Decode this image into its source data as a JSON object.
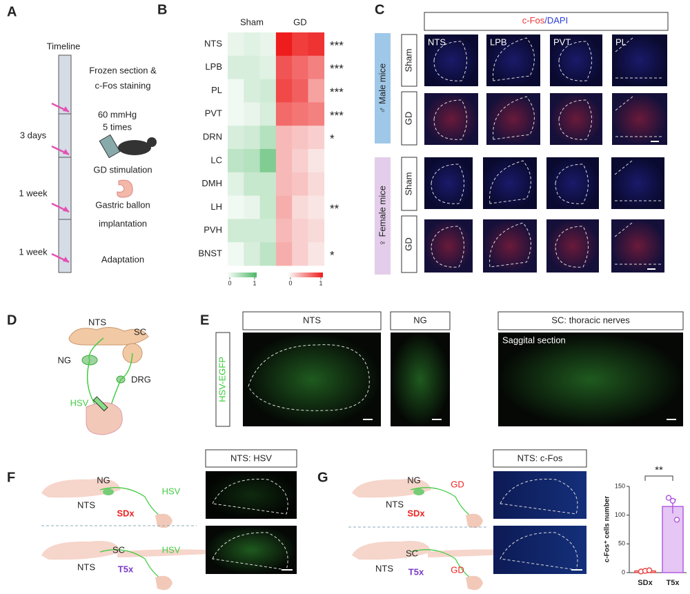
{
  "figure": {
    "panel_labels": [
      "A",
      "B",
      "C",
      "D",
      "E",
      "F",
      "G"
    ],
    "a": {
      "timeline": "Timeline",
      "durations": [
        "3 days",
        "1 week",
        "1 week"
      ],
      "steps": [
        [
          "Frozen section &",
          "c-Fos staining"
        ],
        [
          "60 mmHg",
          "5 times"
        ],
        [
          "GD stimulation"
        ],
        [
          "Gastric ballon",
          "implantation"
        ],
        [
          "Adaptation"
        ]
      ]
    },
    "c": {
      "title_parts": [
        "c-Fos",
        "/DAPI"
      ],
      "groups": [
        "♂ Male mice",
        "♀ Female mice"
      ],
      "conditions": [
        "Sham",
        "GD"
      ],
      "regions": [
        "NTS",
        "LPB",
        "PVT",
        "PL"
      ]
    },
    "d": {
      "labels": [
        "NTS",
        "SC",
        "NG",
        "DRG",
        "HSV"
      ]
    },
    "e": {
      "panels": [
        "NTS",
        "NG",
        "SC: thoracic nerves"
      ],
      "stain": "HSV-EGFP",
      "note": "Saggital section"
    },
    "f": {
      "upper": [
        "NG",
        "HSV",
        "NTS",
        "SDx"
      ],
      "lower": [
        "SC",
        "HSV",
        "NTS",
        "T5x"
      ],
      "image_title": "NTS: HSV"
    },
    "g": {
      "upper": [
        "NG",
        "GD",
        "NTS",
        "SDx"
      ],
      "lower": [
        "SC",
        "NTS",
        "T5x",
        "GD"
      ],
      "image_title": "NTS: c-Fos"
    }
  },
  "chart_data": [
    {
      "type": "heatmap",
      "categories": [
        "NTS",
        "LPB",
        "PL",
        "PVT",
        "DRN",
        "LC",
        "DMH",
        "LH",
        "PVH",
        "BNST"
      ],
      "series": [
        {
          "name": "Sham",
          "color": "#4cb865",
          "values": [
            [
              0.1,
              0.15,
              0.1
            ],
            [
              0.2,
              0.2,
              0.15
            ],
            [
              0.05,
              0.2,
              0.25
            ],
            [
              0.05,
              0.1,
              0.2
            ],
            [
              0.2,
              0.25,
              0.4
            ],
            [
              0.35,
              0.4,
              0.7
            ],
            [
              0.15,
              0.3,
              0.3
            ],
            [
              0.05,
              0.1,
              0.3
            ],
            [
              0.25,
              0.25,
              0.25
            ],
            [
              0.05,
              0.2,
              0.35
            ]
          ]
        },
        {
          "name": "GD",
          "color": "#ee1c1c",
          "values": [
            [
              1,
              0.85,
              0.9
            ],
            [
              0.75,
              0.65,
              0.55
            ],
            [
              0.8,
              0.7,
              0.4
            ],
            [
              0.65,
              0.6,
              0.55
            ],
            [
              0.3,
              0.25,
              0.2
            ],
            [
              0.3,
              0.2,
              0.1
            ],
            [
              0.3,
              0.25,
              0.15
            ],
            [
              0.35,
              0.15,
              0.1
            ],
            [
              0.3,
              0.2,
              0.15
            ],
            [
              0.35,
              0.2,
              0.1
            ]
          ]
        }
      ],
      "significance": [
        "***",
        "***",
        "***",
        "***",
        "*",
        null,
        null,
        "**",
        null,
        "*"
      ],
      "colorbar_ticks": [
        0,
        1
      ]
    },
    {
      "type": "bar",
      "categories": [
        "SDx",
        "T5x"
      ],
      "values": [
        3,
        115
      ],
      "errors": [
        1,
        12
      ],
      "points": [
        [
          2,
          3,
          4
        ],
        [
          130,
          125,
          92
        ]
      ],
      "colors": [
        "#e84a4a",
        "#b45be0"
      ],
      "ylabel": "c-Fos⁺ cells number",
      "ylim": [
        0,
        150
      ],
      "yticks": [
        0,
        50,
        100,
        150
      ],
      "significance": "**"
    }
  ]
}
